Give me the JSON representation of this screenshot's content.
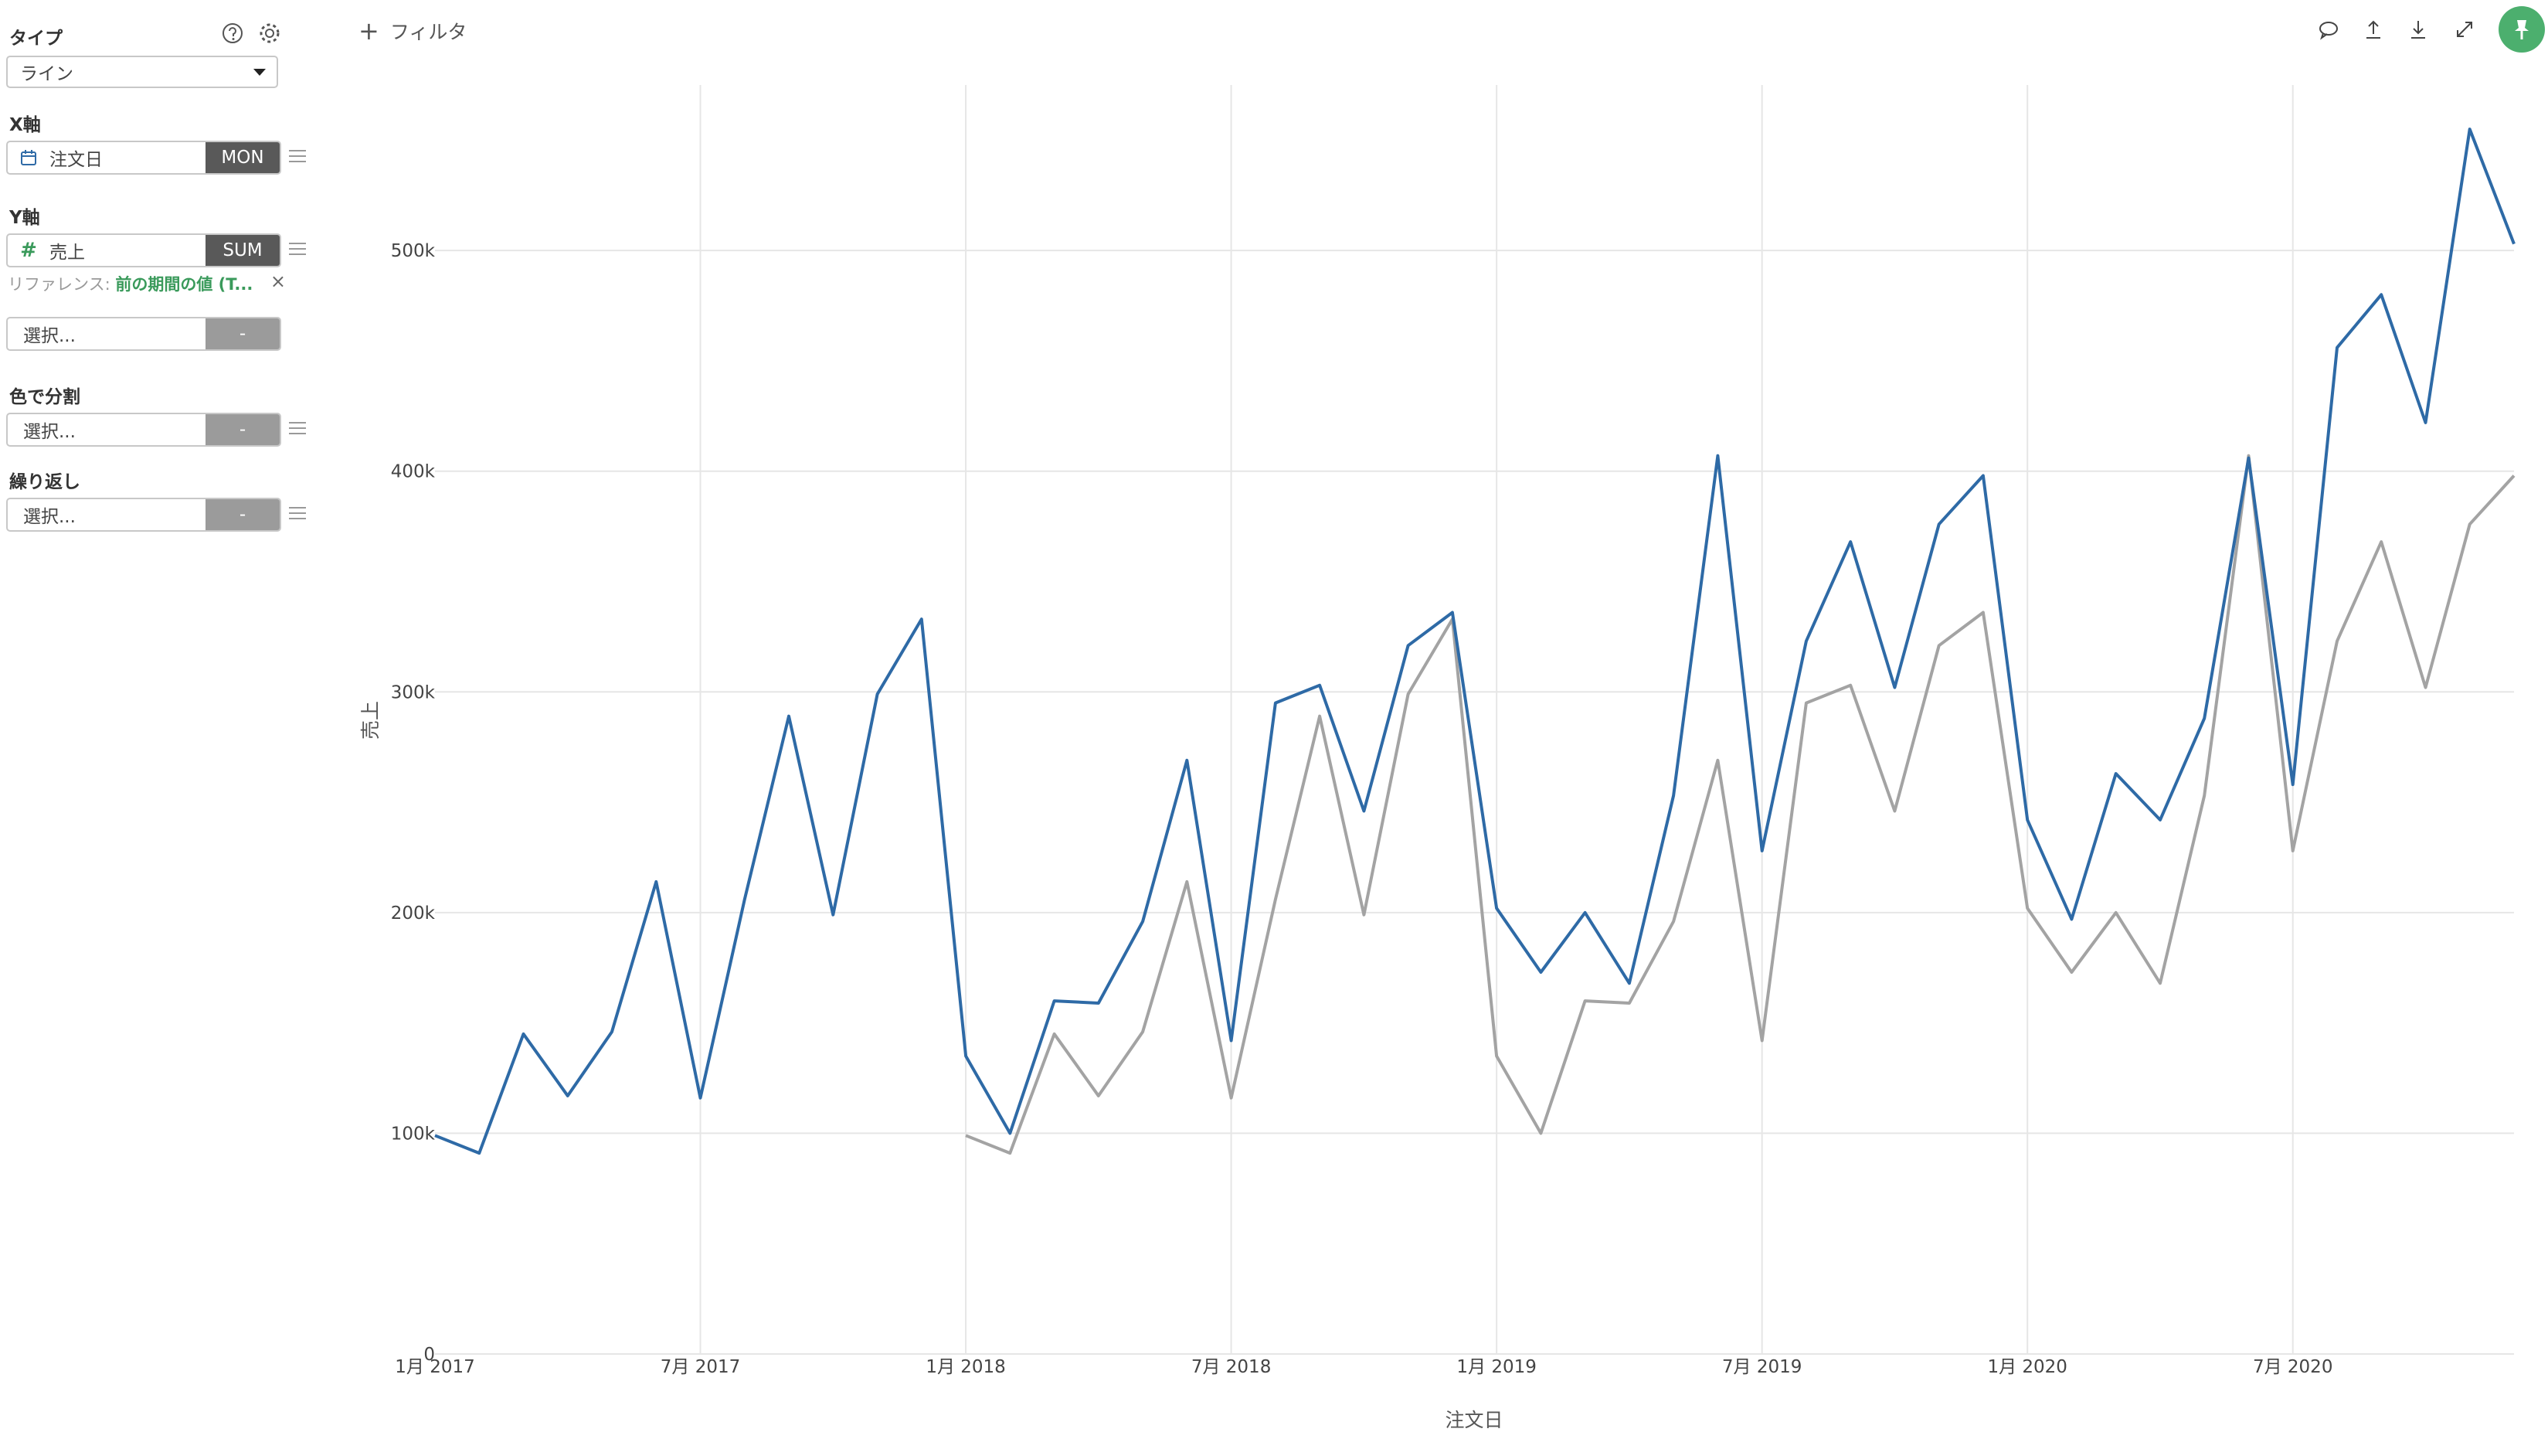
{
  "sidebar": {
    "type_label": "タイプ",
    "type_value": "ライン",
    "xaxis_label": "X軸",
    "xaxis_field": "注文日",
    "xaxis_agg": "MON",
    "yaxis_label": "Y軸",
    "yaxis_field": "売上",
    "yaxis_agg": "SUM",
    "reference_prefix": "リファレンス:",
    "reference_value": "前の期間の値 (T...",
    "reference_close": "×",
    "select_placeholder": "選択...",
    "empty_agg": "-",
    "color_split_label": "色で分割",
    "repeat_label": "繰り返し"
  },
  "toolbar": {
    "filter_plus": "+",
    "filter_label": "フィルタ"
  },
  "chart_data": {
    "type": "line",
    "xlabel": "注文日",
    "ylabel": "売上",
    "ylim": [
      0,
      575000
    ],
    "yticks": [
      "0",
      "100k",
      "200k",
      "300k",
      "400k",
      "500k"
    ],
    "xticks": [
      "1月 2017",
      "7月 2017",
      "1月 2018",
      "7月 2018",
      "1月 2019",
      "7月 2019",
      "1月 2020",
      "7月 2020"
    ],
    "x_start": "2017-01",
    "x_end": "2020-12",
    "series": [
      {
        "color": "#2e6aa6",
        "start_index": 0,
        "values": [
          99000,
          91000,
          145000,
          117000,
          146000,
          214000,
          116000,
          206000,
          289000,
          199000,
          299000,
          333000,
          135000,
          100000,
          160000,
          159000,
          196000,
          269000,
          142000,
          295000,
          303000,
          246000,
          321000,
          336000,
          202000,
          173000,
          200000,
          168000,
          253000,
          407000,
          228000,
          323000,
          368000,
          302000,
          376000,
          398000,
          242000,
          197000,
          263000,
          242000,
          288000,
          406000,
          258000,
          456000,
          480000,
          422000,
          555000,
          503000
        ]
      },
      {
        "color": "#a3a3a3",
        "start_index": 12,
        "values": [
          99000,
          91000,
          145000,
          117000,
          146000,
          214000,
          116000,
          206000,
          289000,
          199000,
          299000,
          333000,
          135000,
          100000,
          160000,
          159000,
          196000,
          269000,
          142000,
          295000,
          303000,
          246000,
          321000,
          336000,
          202000,
          173000,
          200000,
          168000,
          253000,
          407000,
          228000,
          323000,
          368000,
          302000,
          376000,
          398000
        ]
      }
    ]
  }
}
